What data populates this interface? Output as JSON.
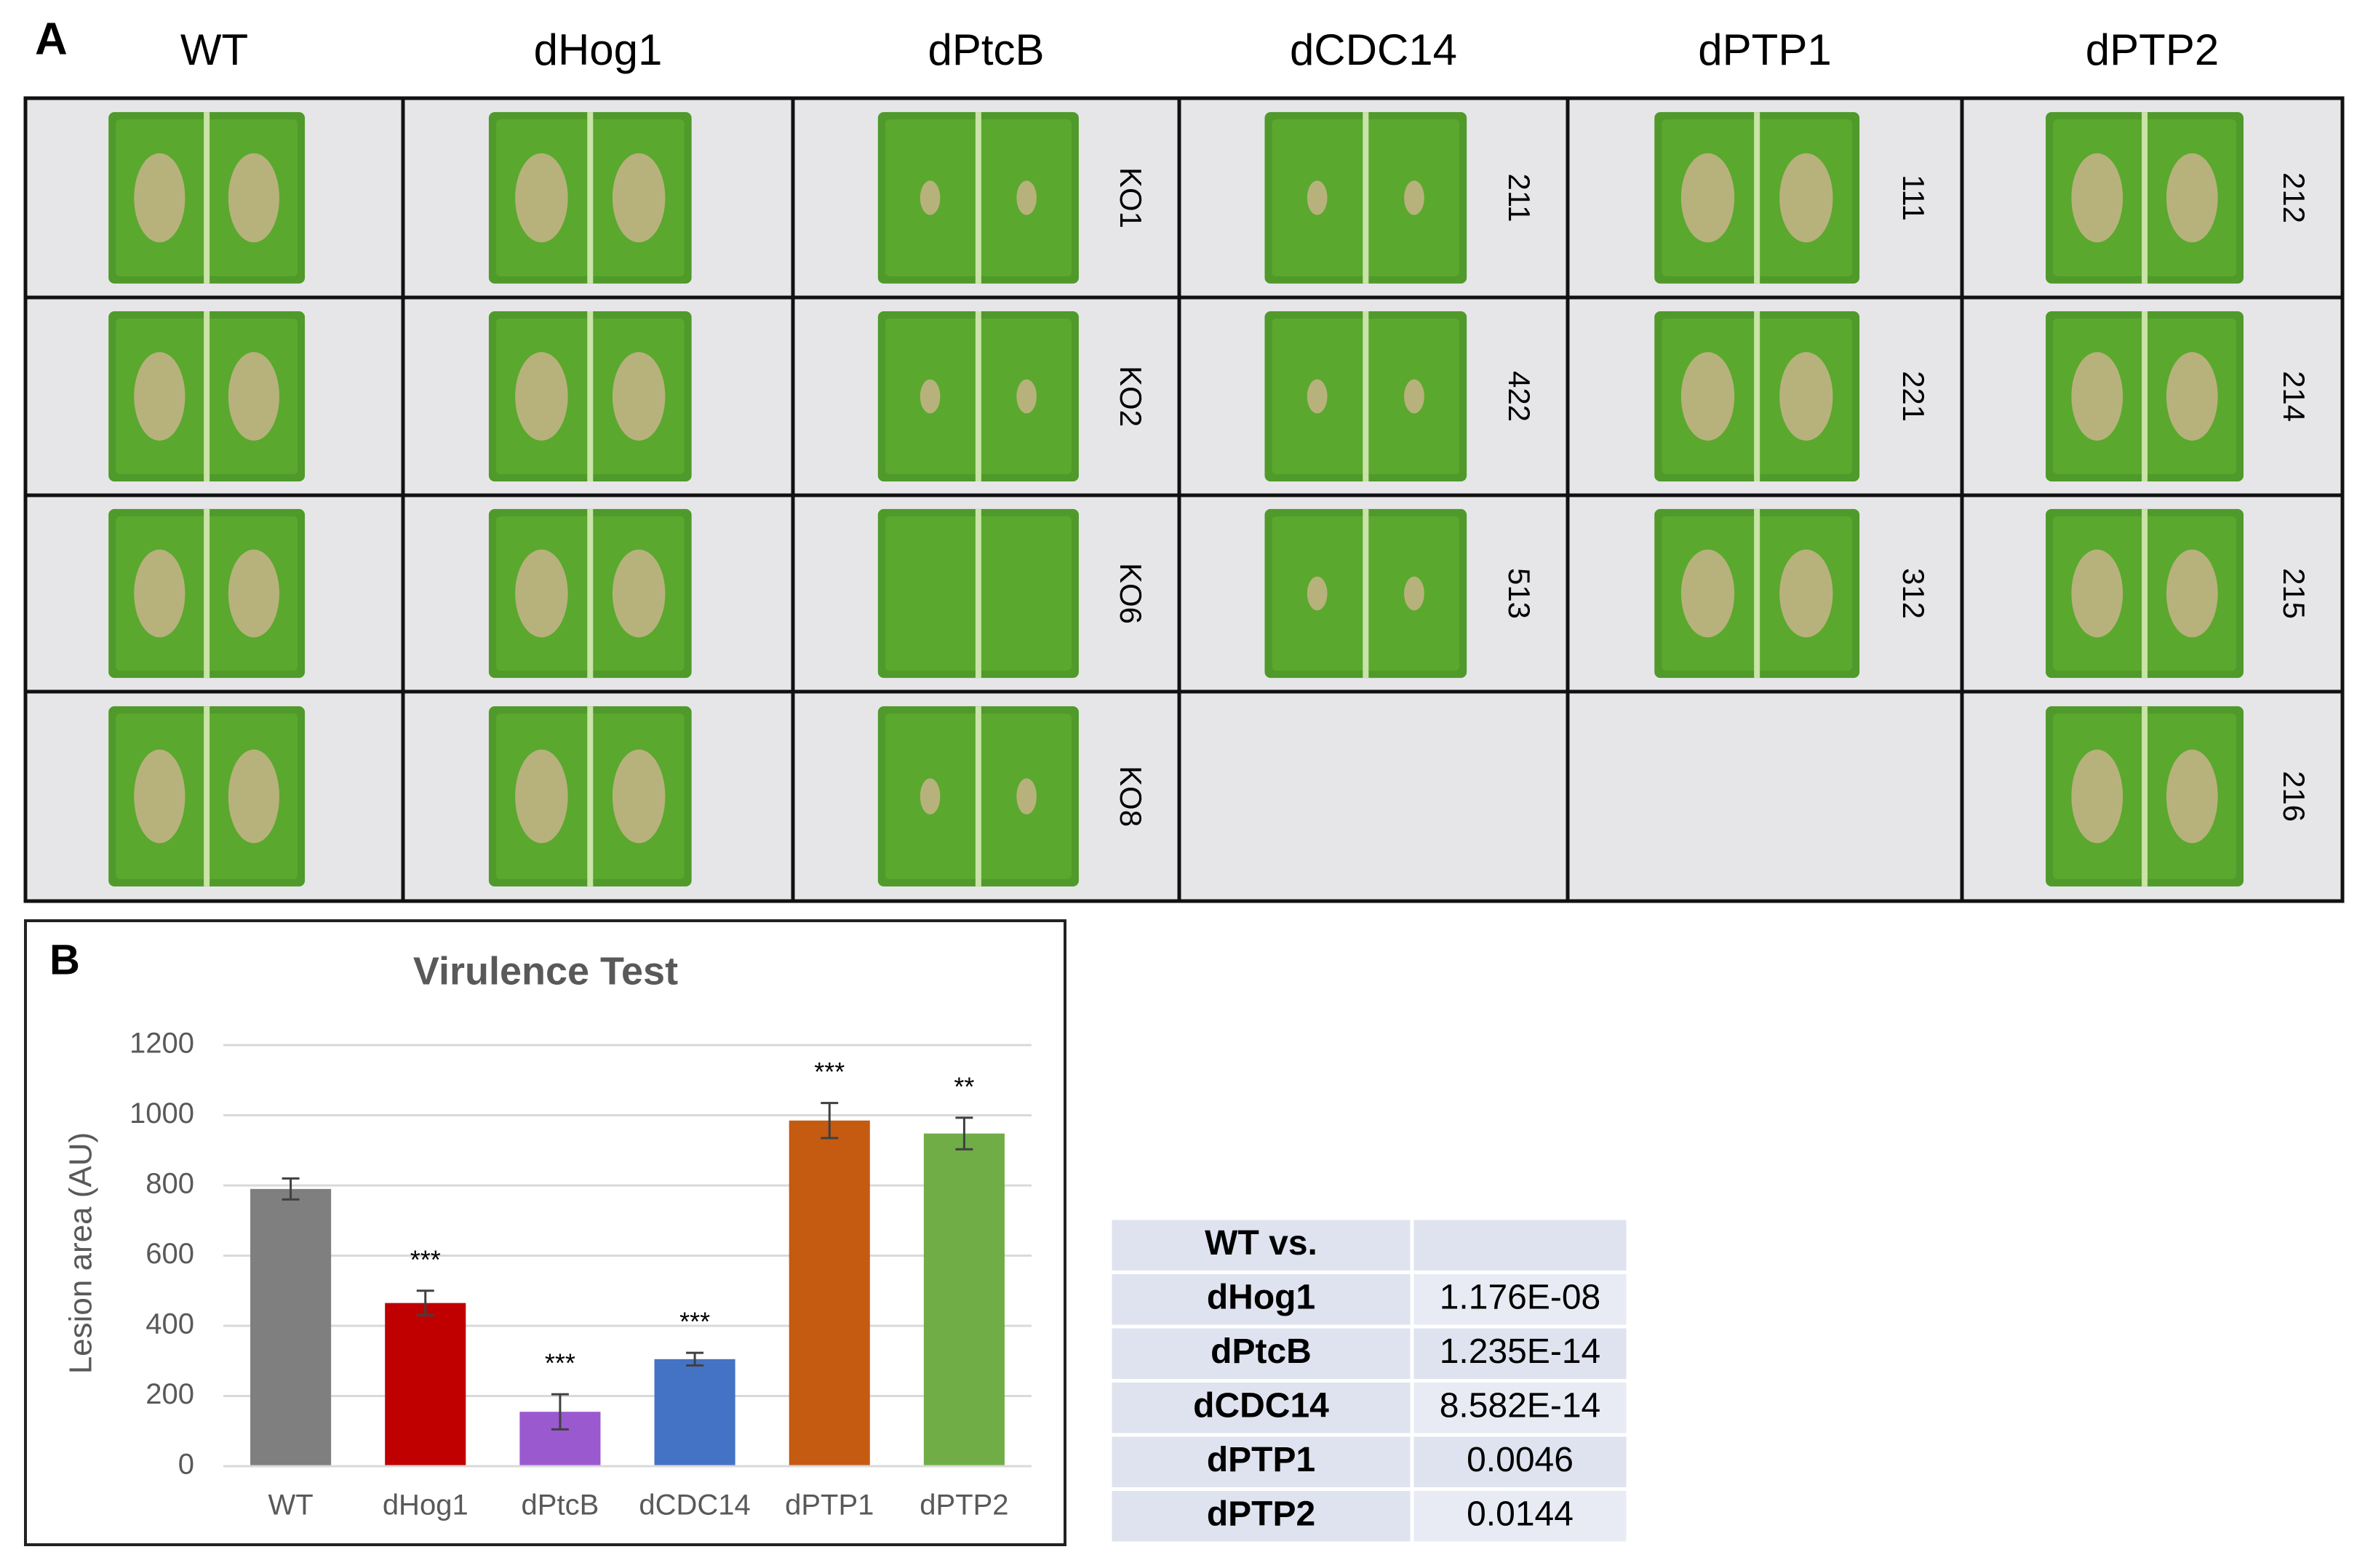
{
  "panel_a": {
    "label": "A",
    "columns": [
      "WT",
      "dHog1",
      "dPtcB",
      "dCDC14",
      "dPTP1",
      "dPTP2"
    ],
    "strain_labels": [
      [
        null,
        null,
        null,
        null
      ],
      [
        null,
        null,
        null,
        null
      ],
      [
        "KO1",
        "KO2",
        "KO6",
        "KO8"
      ],
      [
        "211",
        "422",
        "513",
        null
      ],
      [
        "111",
        "221",
        "312",
        null
      ],
      [
        "212",
        "214",
        "215",
        "216"
      ]
    ]
  },
  "chart_data": {
    "type": "bar",
    "panel_label": "B",
    "title": "Virulence Test",
    "ylabel": "Lesion area (AU)",
    "categories": [
      "WT",
      "dHog1",
      "dPtcB",
      "dCDC14",
      "dPTP1",
      "dPTP2"
    ],
    "values": [
      790,
      465,
      155,
      305,
      985,
      948
    ],
    "errors": [
      30,
      35,
      50,
      18,
      50,
      45
    ],
    "significance": [
      null,
      "***",
      "***",
      "***",
      "***",
      "**"
    ],
    "colors": [
      "#7f7f7f",
      "#c00000",
      "#9b59d0",
      "#4472c4",
      "#c55a11",
      "#70ad47"
    ],
    "ylim": [
      0,
      1200
    ],
    "yticks": [
      0,
      200,
      400,
      600,
      800,
      1000,
      1200
    ],
    "grid": true
  },
  "table": {
    "header": "WT vs.",
    "rows": [
      [
        "dHog1",
        "1.176E-08"
      ],
      [
        "dPtcB",
        "1.235E-14"
      ],
      [
        "dCDC14",
        "8.582E-14"
      ],
      [
        "dPTP1",
        "0.0046"
      ],
      [
        "dPTP2",
        "0.0144"
      ]
    ]
  }
}
